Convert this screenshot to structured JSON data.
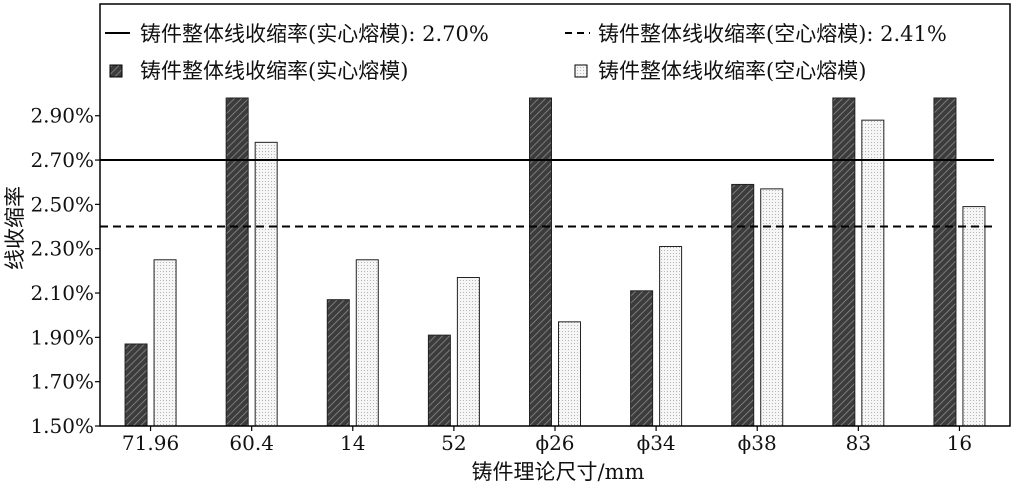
{
  "chart_data": {
    "type": "bar",
    "xlabel": "铸件理论尺寸/mm",
    "ylabel": "线收缩率",
    "categories": [
      "71.96",
      "60.4",
      "14",
      "52",
      "ϕ26",
      "ϕ34",
      "ϕ38",
      "83",
      "16"
    ],
    "ylim": [
      1.5,
      2.98
    ],
    "yticks": [
      1.5,
      1.7,
      1.9,
      2.1,
      2.3,
      2.5,
      2.7,
      2.9
    ],
    "ytick_labels": [
      "1.50%",
      "1.70%",
      "1.90%",
      "2.10%",
      "2.30%",
      "2.50%",
      "2.70%",
      "2.90%"
    ],
    "series": [
      {
        "name": "铸件整体线收缩率(实心熔模)",
        "fill": "hatched-dark",
        "values": [
          1.87,
          3.0,
          2.07,
          1.91,
          3.0,
          2.11,
          2.59,
          3.0,
          3.0
        ]
      },
      {
        "name": "铸件整体线收缩率(空心熔模)",
        "fill": "dotted-light",
        "values": [
          2.25,
          2.78,
          2.25,
          2.17,
          1.97,
          2.31,
          2.57,
          2.88,
          2.49
        ]
      }
    ],
    "reference_lines": [
      {
        "label": "铸件整体线收缩率(实心熔模): 2.70%",
        "value": 2.7,
        "style": "solid"
      },
      {
        "label": "铸件整体线收缩率(空心熔模): 2.41%",
        "value": 2.4,
        "style": "dashed"
      }
    ],
    "legend_position": "top",
    "grid": false
  }
}
